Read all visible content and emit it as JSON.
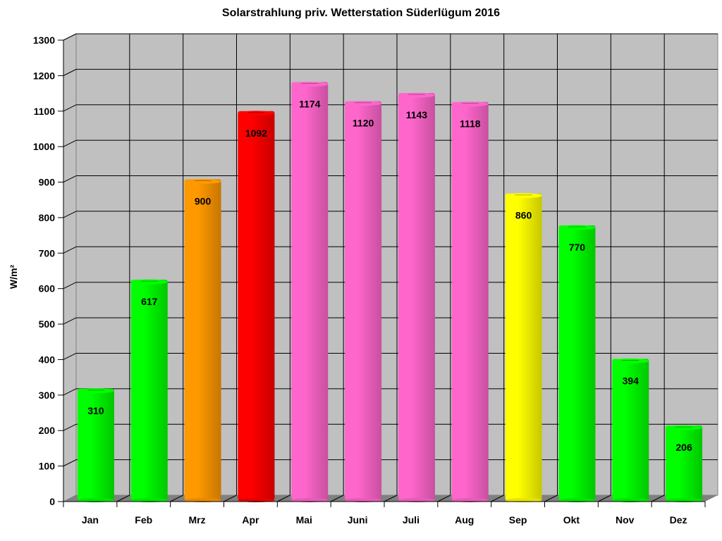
{
  "chart_data": {
    "type": "bar",
    "title": "Solarstrahlung priv. Wetterstation Süderlügum 2016",
    "xlabel": "",
    "ylabel": "W/m²",
    "ylim": [
      0,
      1300
    ],
    "yticks": [
      0,
      100,
      200,
      300,
      400,
      500,
      600,
      700,
      800,
      900,
      1000,
      1100,
      1200,
      1300
    ],
    "grid": true,
    "legend": null,
    "style": "3d-cylinder",
    "categories": [
      "Jan",
      "Feb",
      "Mrz",
      "Apr",
      "Mai",
      "Juni",
      "Juli",
      "Aug",
      "Sep",
      "Okt",
      "Nov",
      "Dez"
    ],
    "values": [
      310,
      617,
      900,
      1092,
      1174,
      1120,
      1143,
      1118,
      860,
      770,
      394,
      206
    ],
    "colors": [
      "#00ff00",
      "#00ff00",
      "#ff9900",
      "#ff0000",
      "#ff66cc",
      "#ff66cc",
      "#ff66cc",
      "#ff66cc",
      "#ffff00",
      "#00ff00",
      "#00ff00",
      "#00ff00"
    ],
    "data_labels": [
      "310",
      "617",
      "900",
      "1092",
      "1174",
      "1120",
      "1143",
      "1118",
      "860",
      "770",
      "394",
      "206"
    ]
  },
  "colors": {
    "plot_background": "#c0c0c0",
    "floor": "#808080",
    "grid": "#000000"
  }
}
